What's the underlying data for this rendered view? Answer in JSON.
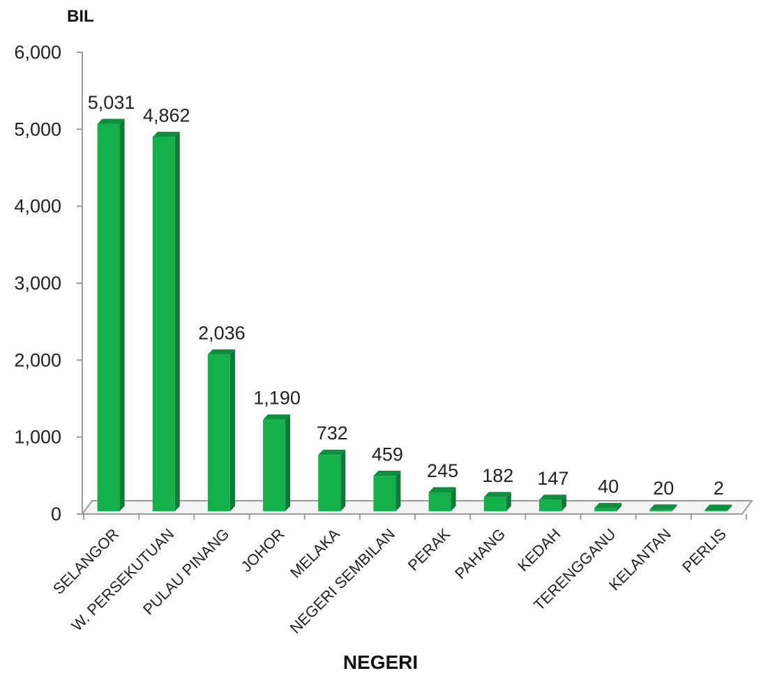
{
  "chart_data": {
    "type": "bar",
    "ylabel": "BIL",
    "xlabel": "NEGERI",
    "categories": [
      "SELANGOR",
      "W. PERSEKUTUAN",
      "PULAU PINANG",
      "JOHOR",
      "MELAKA",
      "NEGERI SEMBILAN",
      "PERAK",
      "PAHANG",
      "KEDAH",
      "TERENGGANU",
      "KELANTAN",
      "PERLIS"
    ],
    "values": [
      5031,
      4862,
      2036,
      1190,
      732,
      459,
      245,
      182,
      147,
      40,
      20,
      2
    ],
    "value_labels": [
      "5,031",
      "4,862",
      "2,036",
      "1,190",
      "732",
      "459",
      "245",
      "182",
      "147",
      "40",
      "20",
      "2"
    ],
    "yticks": [
      "0",
      "1,000",
      "2,000",
      "3,000",
      "4,000",
      "5,000",
      "6,000"
    ],
    "ylim": [
      0,
      6000
    ],
    "grid": false,
    "bar_color": "#14b04c",
    "bar_side_color": "#0a7a34",
    "bar_top_color": "#0e8f3e",
    "axis_color": "#9a9a9a"
  }
}
